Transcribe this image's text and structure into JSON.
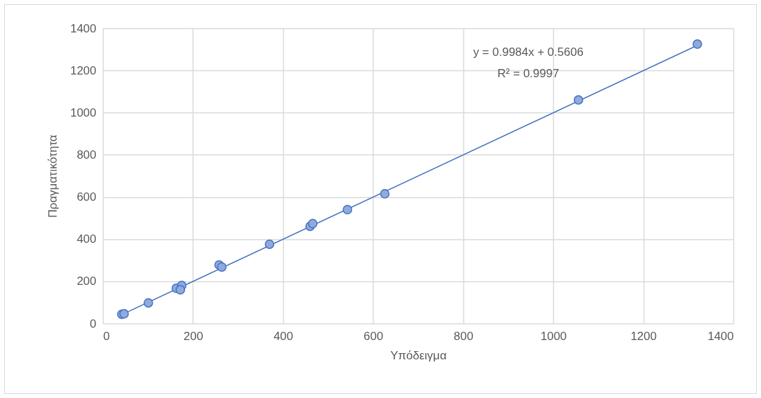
{
  "chart_data": {
    "type": "scatter",
    "xlabel": "Υπόδειγμα",
    "ylabel": "Πραγματικότητα",
    "xlim": [
      0,
      1400
    ],
    "xticks": [
      0,
      200,
      400,
      600,
      800,
      1000,
      1200,
      1400
    ],
    "ylim": [
      0,
      1400
    ],
    "yticks": [
      0,
      200,
      400,
      600,
      800,
      1000,
      1200,
      1400
    ],
    "grid": true,
    "annotations": [
      "y = 0.9984x + 0.5606",
      "R² = 0.9997"
    ],
    "series": [
      {
        "color": "#8faadc",
        "marker": "circle",
        "x": [
          42,
          47,
          101,
          163,
          175,
          172,
          258,
          264,
          370,
          460,
          466,
          543,
          626,
          1056,
          1320
        ],
        "values": [
          44,
          46,
          98,
          167,
          180,
          160,
          278,
          268,
          376,
          461,
          474,
          540,
          615,
          1060,
          1325
        ]
      },
      {
        "type": "line",
        "color": "#4472c4",
        "line_style": "solid",
        "x": [
          42,
          1320
        ],
        "values": [
          42,
          1319
        ]
      }
    ]
  }
}
